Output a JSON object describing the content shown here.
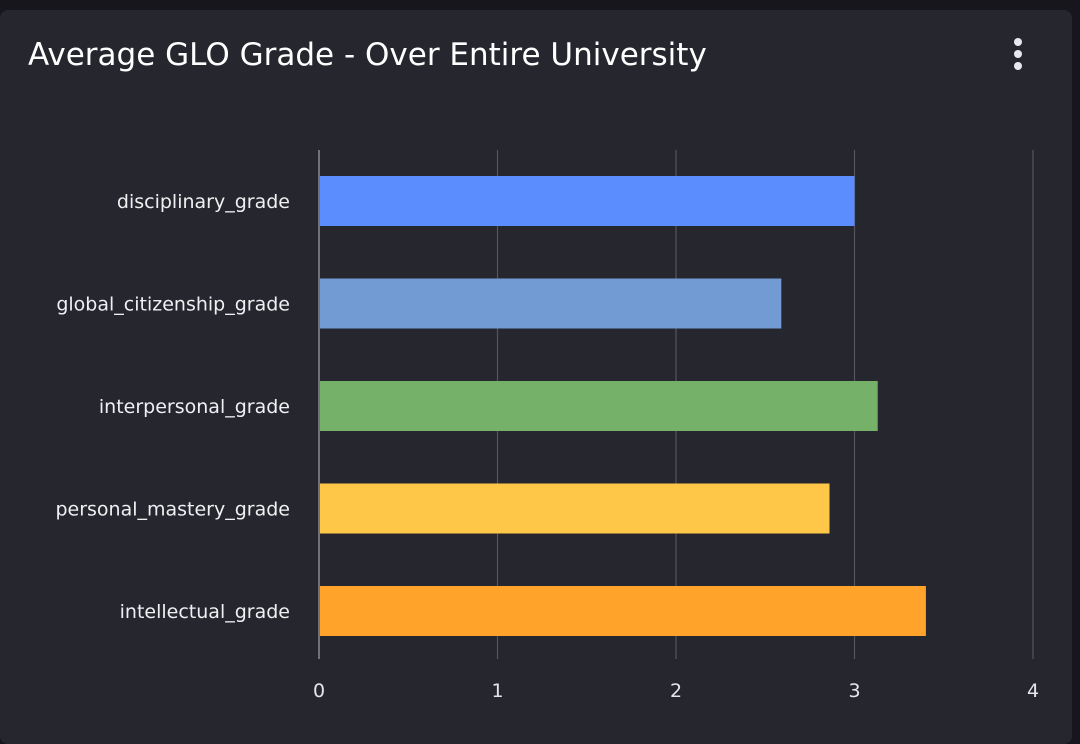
{
  "header": {
    "title": "Average GLO Grade - Over Entire University",
    "menu_icon": "more-vertical-icon"
  },
  "colors": {
    "background": "#25262e",
    "gridline": "#55565c",
    "text": "#ffffff"
  },
  "chart_data": {
    "type": "bar",
    "orientation": "horizontal",
    "title": "Average GLO Grade - Over Entire University",
    "xlabel": "",
    "ylabel": "",
    "categories": [
      "disciplinary_grade",
      "global_citizenship_grade",
      "interpersonal_grade",
      "personal_mastery_grade",
      "intellectual_grade"
    ],
    "values": [
      3.0,
      2.59,
      3.13,
      2.86,
      3.4
    ],
    "bar_colors": [
      "#5b8dfe",
      "#729bd4",
      "#75b168",
      "#ffc748",
      "#ffa32b"
    ],
    "xlim": [
      0,
      4
    ],
    "xticks": [
      "0",
      "1",
      "2",
      "3",
      "4"
    ],
    "grid": true,
    "legend": false
  }
}
